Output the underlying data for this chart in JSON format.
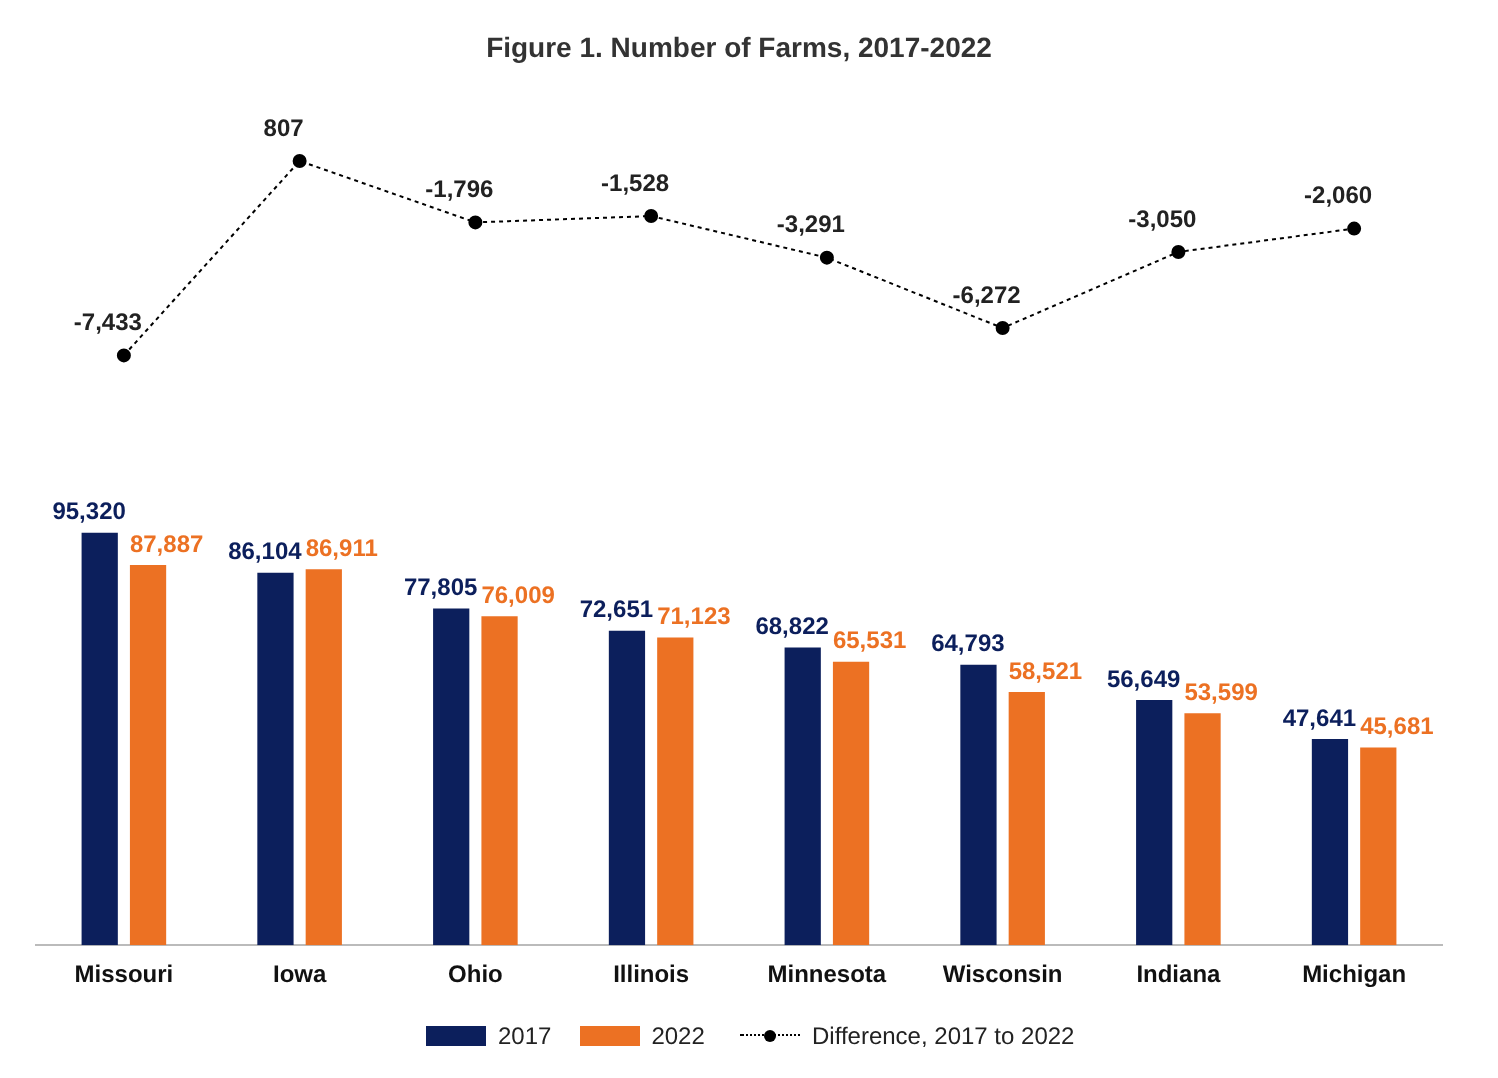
{
  "chart_data": [
    {
      "type": "line",
      "title": "Figure 1. Number of Farms, 2017-2022",
      "categories": [
        null,
        null,
        null,
        null,
        null,
        null,
        null,
        null
      ],
      "series": [
        {
          "name": "Difference, 2017 to 2022",
          "color": "#000000",
          "marker": "circle",
          "line_style": "dotted",
          "values": [
            -7433,
            807,
            -1796,
            -1528,
            -3291,
            -6272,
            -3050,
            -2060
          ],
          "value_labels": [
            "-7,433",
            "807",
            "-1,796",
            "-1,528",
            "-3,291",
            "-6,272",
            "-3,050",
            "-2,060"
          ]
        }
      ],
      "grid": false,
      "legend": "bottom",
      "tick_labels": false
    },
    {
      "type": "bar",
      "categories": [
        "Missouri",
        "Iowa",
        "Ohio",
        "Illinois",
        "Minnesota",
        "Wisconsin",
        "Indiana",
        "Michigan"
      ],
      "series": [
        {
          "name": "2017",
          "color": "#0c1f5c",
          "values": [
            95320,
            86104,
            77805,
            72651,
            68822,
            64793,
            56649,
            47641
          ],
          "value_labels": [
            "95,320",
            "86,104",
            "77,805",
            "72,651",
            "68,822",
            "64,793",
            "56,649",
            "47,641"
          ]
        },
        {
          "name": "2022",
          "color": "#ec7123",
          "values": [
            87887,
            86911,
            76009,
            71123,
            65531,
            58521,
            53599,
            45681
          ],
          "value_labels": [
            "87,887",
            "86,911",
            "76,009",
            "71,123",
            "65,531",
            "58,521",
            "53,599",
            "45,681"
          ]
        }
      ],
      "grid": false,
      "legend": "bottom",
      "tick_labels": "x"
    }
  ]
}
